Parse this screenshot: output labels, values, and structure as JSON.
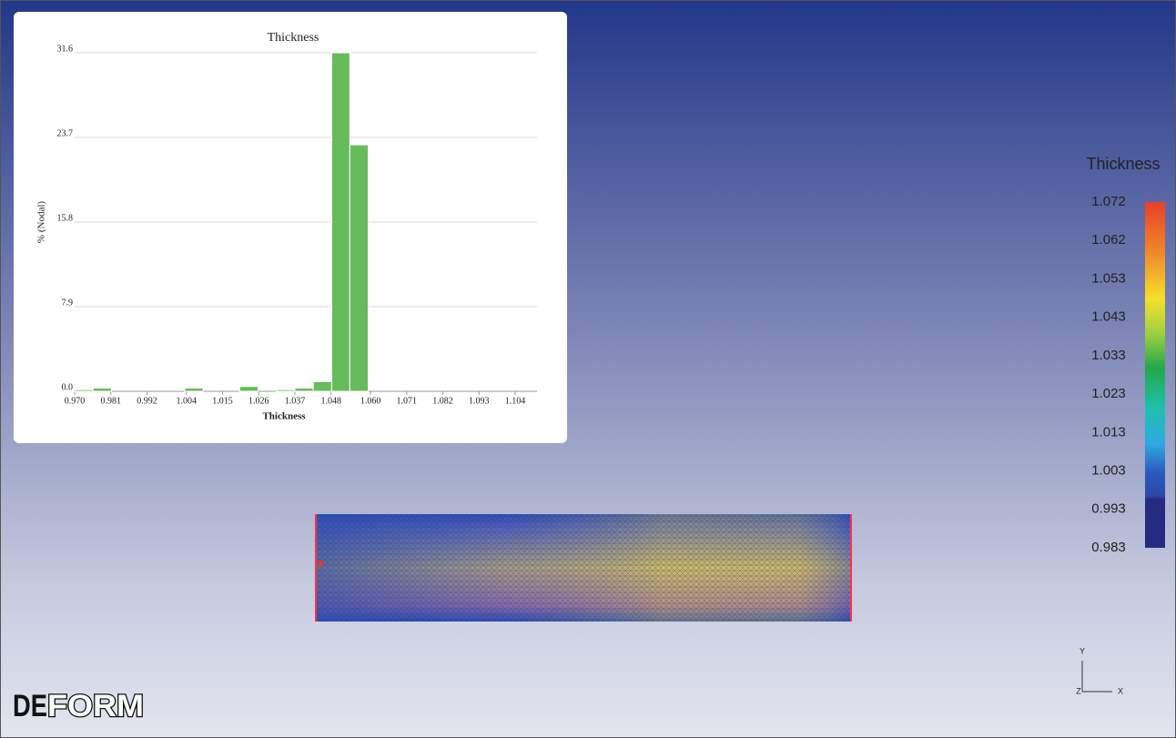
{
  "chart_data": {
    "type": "histogram",
    "title": "Thickness",
    "x_label": "Thickness",
    "y_label": "% (Nodal)",
    "bins": [
      0.97,
      0.9756,
      0.9812,
      0.9867,
      0.9923,
      0.9979,
      1.0035,
      1.0091,
      1.0147,
      1.0202,
      1.0258,
      1.0314,
      1.037,
      1.0426,
      1.0482,
      1.0537,
      1.0593
    ],
    "values": [
      0.15,
      0.3,
      0,
      0,
      0,
      0,
      0.3,
      0,
      0,
      0.45,
      0,
      0.15,
      0.3,
      0.9,
      31.6,
      23.0
    ],
    "color": "#66bb5a",
    "xlim": [
      0.97,
      1.104
    ],
    "xticks": [
      {
        "value": 0.97,
        "label": "0.970"
      },
      0.981,
      0.992,
      1.004,
      1.015,
      1.026,
      1.037,
      1.048,
      {
        "value": 1.06,
        "label": "1.060"
      },
      1.071,
      1.082,
      1.093,
      1.104
    ],
    "ylim": [
      0,
      31.6
    ],
    "yticks": [
      {
        "value": 0,
        "label": "0.0"
      },
      7.9,
      15.8,
      23.7,
      31.6
    ],
    "grid": true
  },
  "color_scale": {
    "title": "Thickness",
    "ticks": [
      1.072,
      1.062,
      1.053,
      1.043,
      1.033,
      1.023,
      1.013,
      1.003,
      0.993,
      0.983
    ]
  },
  "logo": {
    "left": "DE",
    "right": "FORM"
  },
  "triad": {
    "y": "Y",
    "z": "Z",
    "x": "X"
  }
}
